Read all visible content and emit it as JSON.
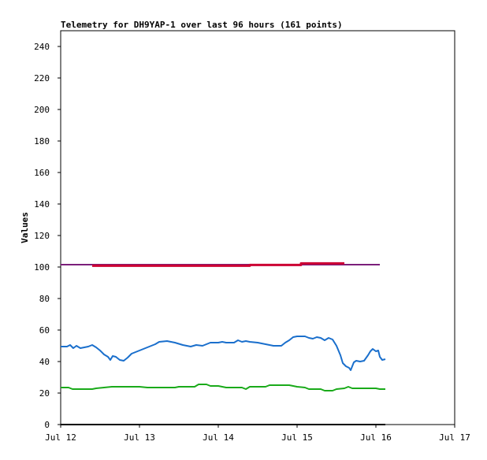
{
  "chart_data": {
    "type": "line",
    "title": "Telemetry for DH9YAP-1 over last 96 hours (161 points)",
    "ylabel": "Values",
    "xlabel": "",
    "ylim": [
      0,
      250
    ],
    "y_ticks": [
      0,
      20,
      40,
      60,
      80,
      100,
      120,
      140,
      160,
      180,
      200,
      220,
      240
    ],
    "x_ticks": [
      "Jul 12",
      "Jul 13",
      "Jul 14",
      "Jul 15",
      "Jul 16",
      "Jul 17"
    ],
    "xlim_days": [
      0,
      5
    ],
    "grid": false,
    "series": [
      {
        "color": "#7b1f7a",
        "width": 2,
        "points": [
          [
            0,
            101.5
          ],
          [
            4.05,
            101.5
          ]
        ]
      },
      {
        "color": "#cc0033",
        "width": 3,
        "points": [
          [
            0.4,
            100.8
          ],
          [
            2.4,
            100.8
          ],
          [
            2.4,
            101.3
          ],
          [
            3.05,
            101.3
          ],
          [
            3.05,
            102.3
          ],
          [
            3.6,
            102.3
          ]
        ]
      },
      {
        "color": "#1a6fcc",
        "width": 2,
        "points": [
          [
            0,
            49.5
          ],
          [
            0.08,
            49.5
          ],
          [
            0.12,
            50.5
          ],
          [
            0.16,
            48.5
          ],
          [
            0.2,
            50
          ],
          [
            0.25,
            48.5
          ],
          [
            0.3,
            49
          ],
          [
            0.35,
            49.5
          ],
          [
            0.4,
            50.5
          ],
          [
            0.45,
            49
          ],
          [
            0.5,
            47
          ],
          [
            0.55,
            44.5
          ],
          [
            0.6,
            43
          ],
          [
            0.63,
            41
          ],
          [
            0.66,
            43.5
          ],
          [
            0.7,
            43
          ],
          [
            0.75,
            41
          ],
          [
            0.8,
            40.5
          ],
          [
            0.85,
            42.5
          ],
          [
            0.9,
            45
          ],
          [
            1.0,
            47
          ],
          [
            1.1,
            49
          ],
          [
            1.2,
            51
          ],
          [
            1.25,
            52.5
          ],
          [
            1.35,
            53
          ],
          [
            1.45,
            52
          ],
          [
            1.55,
            50.5
          ],
          [
            1.65,
            49.5
          ],
          [
            1.72,
            50.5
          ],
          [
            1.8,
            50
          ],
          [
            1.9,
            52
          ],
          [
            2.0,
            52
          ],
          [
            2.05,
            52.5
          ],
          [
            2.1,
            52
          ],
          [
            2.2,
            52
          ],
          [
            2.25,
            53.5
          ],
          [
            2.3,
            52.5
          ],
          [
            2.35,
            53
          ],
          [
            2.4,
            52.5
          ],
          [
            2.5,
            52
          ],
          [
            2.6,
            51
          ],
          [
            2.7,
            50
          ],
          [
            2.8,
            50
          ],
          [
            2.85,
            52
          ],
          [
            2.9,
            53.5
          ],
          [
            2.95,
            55.5
          ],
          [
            3.0,
            56
          ],
          [
            3.1,
            56
          ],
          [
            3.15,
            55
          ],
          [
            3.2,
            54.5
          ],
          [
            3.25,
            55.5
          ],
          [
            3.3,
            55
          ],
          [
            3.35,
            53.5
          ],
          [
            3.4,
            55
          ],
          [
            3.45,
            54
          ],
          [
            3.5,
            50
          ],
          [
            3.55,
            44
          ],
          [
            3.58,
            39
          ],
          [
            3.62,
            37
          ],
          [
            3.66,
            36
          ],
          [
            3.68,
            34.5
          ],
          [
            3.7,
            37
          ],
          [
            3.72,
            39.5
          ],
          [
            3.75,
            40.5
          ],
          [
            3.8,
            40
          ],
          [
            3.85,
            40.5
          ],
          [
            3.9,
            44
          ],
          [
            3.93,
            46.5
          ],
          [
            3.96,
            48
          ],
          [
            4.0,
            46.5
          ],
          [
            4.03,
            47
          ],
          [
            4.05,
            43
          ],
          [
            4.08,
            41
          ],
          [
            4.12,
            41.5
          ]
        ]
      },
      {
        "color": "#1aaa1a",
        "width": 2,
        "points": [
          [
            0,
            23.5
          ],
          [
            0.1,
            23.5
          ],
          [
            0.15,
            22.5
          ],
          [
            0.4,
            22.5
          ],
          [
            0.45,
            23
          ],
          [
            0.55,
            23.5
          ],
          [
            0.65,
            24
          ],
          [
            1.0,
            24
          ],
          [
            1.1,
            23.5
          ],
          [
            1.45,
            23.5
          ],
          [
            1.5,
            24
          ],
          [
            1.7,
            24
          ],
          [
            1.75,
            25.5
          ],
          [
            1.85,
            25.5
          ],
          [
            1.9,
            24.5
          ],
          [
            2.0,
            24.5
          ],
          [
            2.1,
            23.5
          ],
          [
            2.3,
            23.5
          ],
          [
            2.35,
            22.5
          ],
          [
            2.4,
            24
          ],
          [
            2.6,
            24
          ],
          [
            2.65,
            25
          ],
          [
            2.9,
            25
          ],
          [
            3.0,
            24
          ],
          [
            3.1,
            23.5
          ],
          [
            3.15,
            22.5
          ],
          [
            3.3,
            22.5
          ],
          [
            3.35,
            21.5
          ],
          [
            3.45,
            21.5
          ],
          [
            3.5,
            22.5
          ],
          [
            3.6,
            23
          ],
          [
            3.65,
            24
          ],
          [
            3.7,
            23
          ],
          [
            3.8,
            23
          ],
          [
            4.0,
            23
          ],
          [
            4.05,
            22.5
          ],
          [
            4.12,
            22.5
          ]
        ]
      },
      {
        "color": "#000000",
        "width": 2,
        "points": [
          [
            0,
            0
          ],
          [
            4.12,
            0
          ]
        ]
      }
    ]
  }
}
